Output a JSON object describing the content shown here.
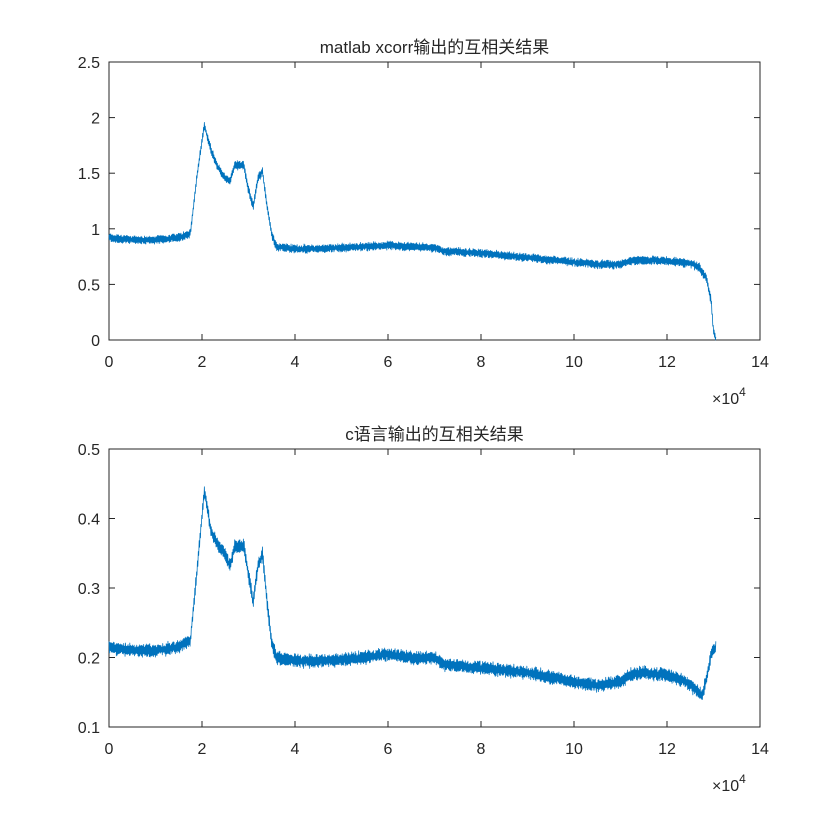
{
  "chart_data": [
    {
      "type": "line",
      "title": "matlab xcorr输出的互相关结果",
      "xlim": [
        0,
        140000
      ],
      "ylim": [
        0,
        2.5
      ],
      "xticks": [
        0,
        20000,
        40000,
        60000,
        80000,
        100000,
        120000,
        140000
      ],
      "xtick_labels": [
        "0",
        "2",
        "4",
        "6",
        "8",
        "10",
        "12",
        "14"
      ],
      "yticks": [
        0,
        0.5,
        1,
        1.5,
        2,
        2.5
      ],
      "ytick_labels": [
        "0",
        "0.5",
        "1",
        "1.5",
        "2",
        "2.5"
      ],
      "x_exponent": {
        "base": "×10",
        "power": "4"
      },
      "color": "#0072BD",
      "grid": false,
      "series": [
        {
          "x": [
            0,
            5000,
            10000,
            15000,
            17500,
            19000,
            20500,
            22000,
            23500,
            25000,
            26000,
            27000,
            29000,
            30000,
            31000,
            32000,
            33000,
            34000,
            35000,
            36000,
            40000,
            45000,
            50000,
            55000,
            60000,
            65000,
            70000,
            72000,
            80000,
            90000,
            100000,
            105000,
            110000,
            112000,
            115000,
            120000,
            125000,
            127000,
            128500,
            129500,
            130000,
            130500
          ],
          "y": [
            0.92,
            0.9,
            0.9,
            0.92,
            0.96,
            1.5,
            1.93,
            1.7,
            1.55,
            1.45,
            1.43,
            1.57,
            1.57,
            1.35,
            1.2,
            1.45,
            1.52,
            1.2,
            0.95,
            0.84,
            0.82,
            0.82,
            0.83,
            0.84,
            0.85,
            0.84,
            0.83,
            0.8,
            0.78,
            0.74,
            0.7,
            0.68,
            0.68,
            0.71,
            0.72,
            0.71,
            0.69,
            0.65,
            0.55,
            0.35,
            0.08,
            0.0
          ],
          "band": 0.07
        }
      ]
    },
    {
      "type": "line",
      "title": "c语言输出的互相关结果",
      "xlim": [
        0,
        140000
      ],
      "ylim": [
        0.1,
        0.5
      ],
      "xticks": [
        0,
        20000,
        40000,
        60000,
        80000,
        100000,
        120000,
        140000
      ],
      "xtick_labels": [
        "0",
        "2",
        "4",
        "6",
        "8",
        "10",
        "12",
        "14"
      ],
      "yticks": [
        0.1,
        0.2,
        0.3,
        0.4,
        0.5
      ],
      "ytick_labels": [
        "0.1",
        "0.2",
        "0.3",
        "0.4",
        "0.5"
      ],
      "x_exponent": {
        "base": "×10",
        "power": "4"
      },
      "color": "#0072BD",
      "grid": false,
      "series": [
        {
          "x": [
            0,
            5000,
            10000,
            15000,
            17500,
            19000,
            20500,
            22000,
            23500,
            25000,
            26000,
            27000,
            29000,
            30000,
            31000,
            32000,
            33000,
            34000,
            35000,
            36000,
            40000,
            45000,
            50000,
            55000,
            60000,
            65000,
            70000,
            72000,
            80000,
            90000,
            100000,
            105000,
            110000,
            112000,
            115000,
            120000,
            124000,
            126000,
            127500,
            128500,
            129500,
            130500
          ],
          "y": [
            0.215,
            0.21,
            0.21,
            0.215,
            0.225,
            0.33,
            0.44,
            0.38,
            0.36,
            0.35,
            0.33,
            0.36,
            0.36,
            0.32,
            0.28,
            0.33,
            0.35,
            0.28,
            0.22,
            0.2,
            0.195,
            0.195,
            0.197,
            0.2,
            0.205,
            0.2,
            0.2,
            0.19,
            0.185,
            0.178,
            0.165,
            0.16,
            0.165,
            0.175,
            0.178,
            0.175,
            0.165,
            0.155,
            0.145,
            0.17,
            0.205,
            0.215
          ],
          "band": 0.018
        }
      ]
    }
  ]
}
